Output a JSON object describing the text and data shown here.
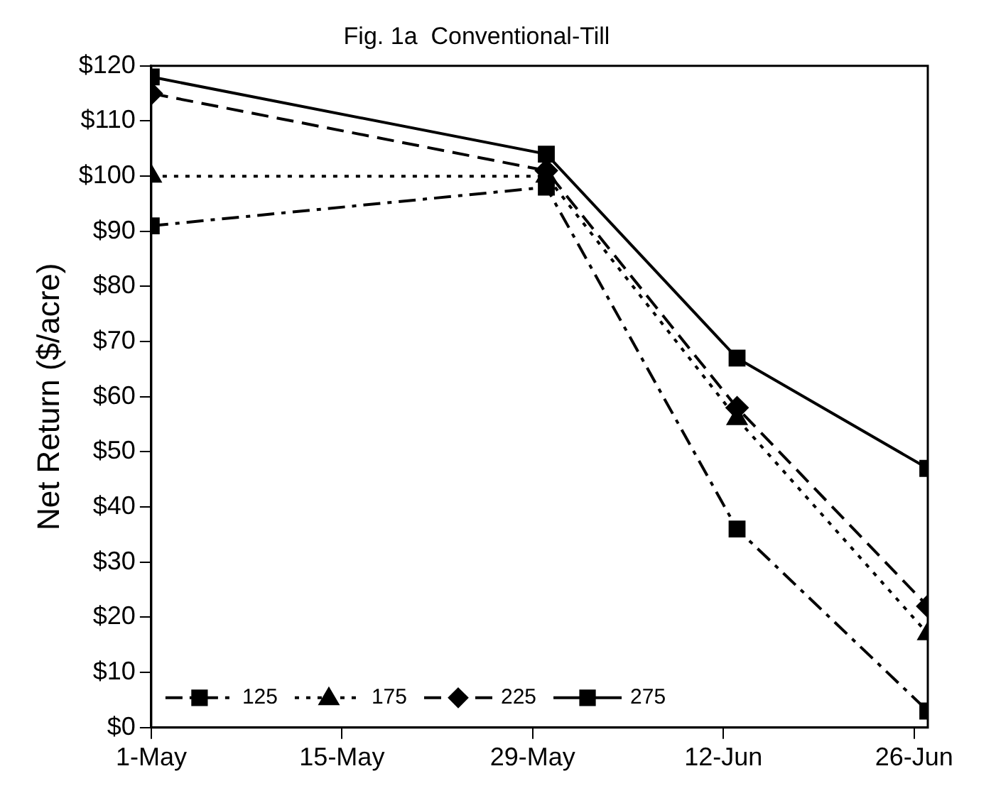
{
  "chart_data": {
    "type": "line",
    "title": "Fig. 1a  Conventional-Till",
    "ylabel": "Net Return ($/acre)",
    "x": [
      "--05-01",
      "--05-30",
      "--06-13",
      "--06-27"
    ],
    "xlim": [
      "--05-01",
      "--06-27"
    ],
    "xticks": [
      {
        "value": "--05-01",
        "label": "1-May"
      },
      {
        "value": "--05-15",
        "label": "15-May"
      },
      {
        "value": "--05-29",
        "label": "29-May"
      },
      {
        "value": "--06-12",
        "label": "12-Jun"
      },
      {
        "value": "--06-26",
        "label": "26-Jun"
      }
    ],
    "ylim": [
      0,
      120
    ],
    "yticks": [
      {
        "value": 0,
        "label": "$0"
      },
      {
        "value": 10,
        "label": "$10"
      },
      {
        "value": 20,
        "label": "$20"
      },
      {
        "value": 30,
        "label": "$30"
      },
      {
        "value": 40,
        "label": "$40"
      },
      {
        "value": 50,
        "label": "$50"
      },
      {
        "value": 60,
        "label": "$60"
      },
      {
        "value": 70,
        "label": "$70"
      },
      {
        "value": 80,
        "label": "$80"
      },
      {
        "value": 90,
        "label": "$90"
      },
      {
        "value": 100,
        "label": "$100"
      },
      {
        "value": 110,
        "label": "$110"
      },
      {
        "value": 120,
        "label": "$120"
      }
    ],
    "grid": false,
    "legend": "bottom",
    "series": [
      {
        "name": "125",
        "color": "#000000",
        "marker": "square",
        "line_style": "dashdot",
        "values": [
          91,
          98,
          36,
          3
        ]
      },
      {
        "name": "175",
        "color": "#000000",
        "marker": "triangle",
        "line_style": "dotted",
        "values": [
          100,
          100,
          56,
          17
        ]
      },
      {
        "name": "225",
        "color": "#000000",
        "marker": "diamond",
        "line_style": "dashed",
        "values": [
          115,
          101,
          58,
          22
        ]
      },
      {
        "name": "275",
        "color": "#000000",
        "marker": "square",
        "line_style": "solid",
        "values": [
          118,
          104,
          67,
          47
        ]
      }
    ]
  }
}
